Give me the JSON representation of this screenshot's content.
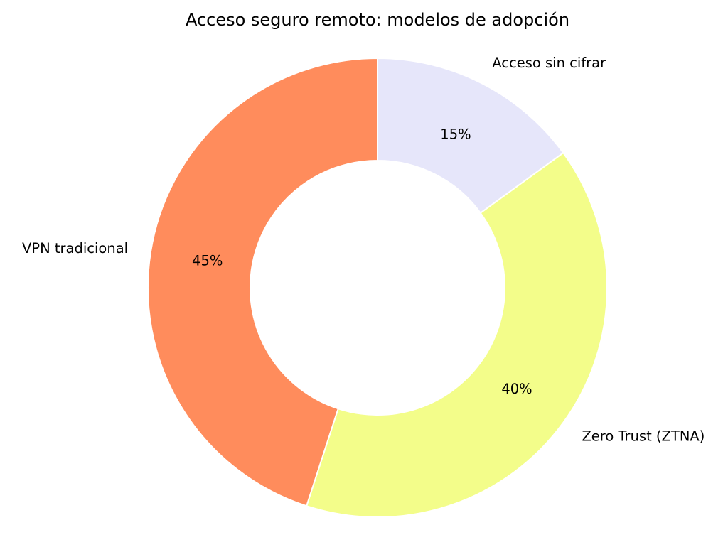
{
  "chart_data": {
    "type": "pie",
    "variant": "donut",
    "title": "Acceso seguro remoto: modelos de adopción",
    "start": "top",
    "direction": "clockwise",
    "legend": "none",
    "grid": false,
    "slices": [
      {
        "label": "Acceso sin cifrar",
        "value": 15,
        "display": "15%",
        "color": "#e6e6fa"
      },
      {
        "label": "Zero Trust (ZTNA)",
        "value": 40,
        "display": "40%",
        "color": "#f3fd8a"
      },
      {
        "label": "VPN tradicional",
        "value": 45,
        "display": "45%",
        "color": "#ff8c5c"
      }
    ]
  }
}
